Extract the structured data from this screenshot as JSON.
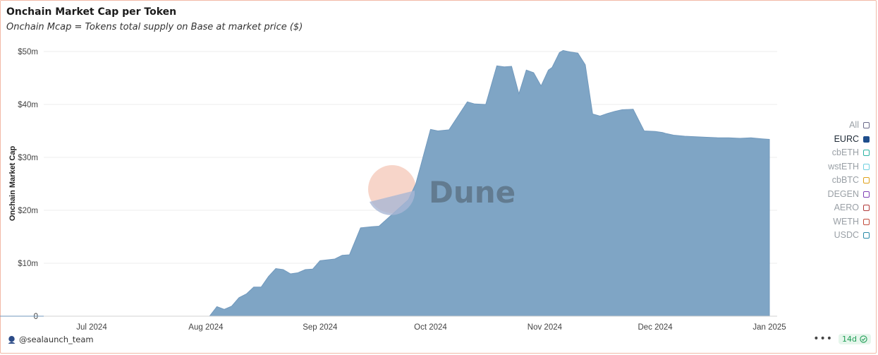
{
  "header": {
    "title": "Onchain Market Cap per Token",
    "subtitle": "Onchain Mcap = Tokens total supply on Base at market price ($)"
  },
  "watermark": "Dune",
  "legend": [
    {
      "label": "All",
      "color": "#6b6b8a",
      "active": false
    },
    {
      "label": "EURC",
      "color": "#1f4e8c",
      "active": true
    },
    {
      "label": "cbETH",
      "color": "#2bb3a3",
      "active": false
    },
    {
      "label": "wstETH",
      "color": "#6fd0e0",
      "active": false
    },
    {
      "label": "cbBTC",
      "color": "#e0a21b",
      "active": false
    },
    {
      "label": "DEGEN",
      "color": "#7e3fb5",
      "active": false
    },
    {
      "label": "AERO",
      "color": "#b03a3a",
      "active": false
    },
    {
      "label": "WETH",
      "color": "#c24b3b",
      "active": false
    },
    {
      "label": "USDC",
      "color": "#2a8aa8",
      "active": false
    }
  ],
  "footer": {
    "author": "@sealaunch_team",
    "range": "14d",
    "menu": "•••"
  },
  "chart_data": {
    "type": "area",
    "ylabel": "Onchain Market Cap",
    "xlabel": "",
    "ylim": [
      0,
      50
    ],
    "yticks": [
      0,
      10,
      20,
      30,
      40,
      50
    ],
    "ytick_labels": [
      "0",
      "$10m",
      "$20m",
      "$30m",
      "$40m",
      "$50m"
    ],
    "x_range": [
      "2024-06-01",
      "2025-01-01"
    ],
    "xticks": [
      "2024-07-01",
      "2024-08-01",
      "2024-09-01",
      "2024-10-01",
      "2024-11-01",
      "2024-12-01",
      "2025-01-01"
    ],
    "xtick_labels": [
      "Jul 2024",
      "Aug 2024",
      "Sep 2024",
      "Oct 2024",
      "Nov 2024",
      "Dec 2024",
      "Jan 2025"
    ],
    "grid": true,
    "legend_position": "right",
    "series": [
      {
        "name": "EURC",
        "color": "#7fa5c5",
        "x": [
          "2024-06-01",
          "2024-08-02",
          "2024-08-04",
          "2024-08-06",
          "2024-08-08",
          "2024-08-10",
          "2024-08-12",
          "2024-08-14",
          "2024-08-16",
          "2024-08-18",
          "2024-08-20",
          "2024-08-22",
          "2024-08-24",
          "2024-08-26",
          "2024-08-28",
          "2024-08-30",
          "2024-09-01",
          "2024-09-05",
          "2024-09-07",
          "2024-09-09",
          "2024-09-12",
          "2024-09-15",
          "2024-09-17",
          "2024-09-21",
          "2024-09-25",
          "2024-09-27",
          "2024-10-01",
          "2024-10-03",
          "2024-10-06",
          "2024-10-11",
          "2024-10-13",
          "2024-10-16",
          "2024-10-19",
          "2024-10-21",
          "2024-10-23",
          "2024-10-25",
          "2024-10-27",
          "2024-10-29",
          "2024-10-31",
          "2024-11-02",
          "2024-11-03",
          "2024-11-05",
          "2024-11-06",
          "2024-11-08",
          "2024-11-10",
          "2024-11-12",
          "2024-11-14",
          "2024-11-16",
          "2024-11-18",
          "2024-11-20",
          "2024-11-22",
          "2024-11-25",
          "2024-11-28",
          "2024-12-01",
          "2024-12-03",
          "2024-12-04",
          "2024-12-06",
          "2024-12-09",
          "2024-12-12",
          "2024-12-15",
          "2024-12-18",
          "2024-12-21",
          "2024-12-24",
          "2024-12-27",
          "2024-12-30",
          "2025-01-01"
        ],
        "values": [
          0,
          0,
          1.8,
          1.3,
          1.9,
          3.5,
          4.2,
          5.5,
          5.5,
          7.5,
          9.0,
          8.8,
          8.0,
          8.2,
          8.8,
          8.9,
          10.5,
          10.8,
          11.5,
          11.6,
          16.7,
          16.9,
          17.0,
          19.5,
          22.0,
          25.0,
          35.3,
          35.0,
          35.2,
          40.5,
          40.1,
          40.0,
          47.3,
          47.1,
          47.2,
          42.0,
          46.5,
          46.0,
          43.5,
          46.5,
          47.0,
          49.8,
          50.2,
          49.9,
          49.7,
          47.5,
          38.2,
          37.8,
          38.3,
          38.7,
          39.0,
          39.1,
          35.0,
          34.9,
          34.7,
          34.5,
          34.2,
          34.0,
          33.9,
          33.8,
          33.7,
          33.7,
          33.6,
          33.7,
          33.5,
          33.4
        ]
      }
    ]
  }
}
